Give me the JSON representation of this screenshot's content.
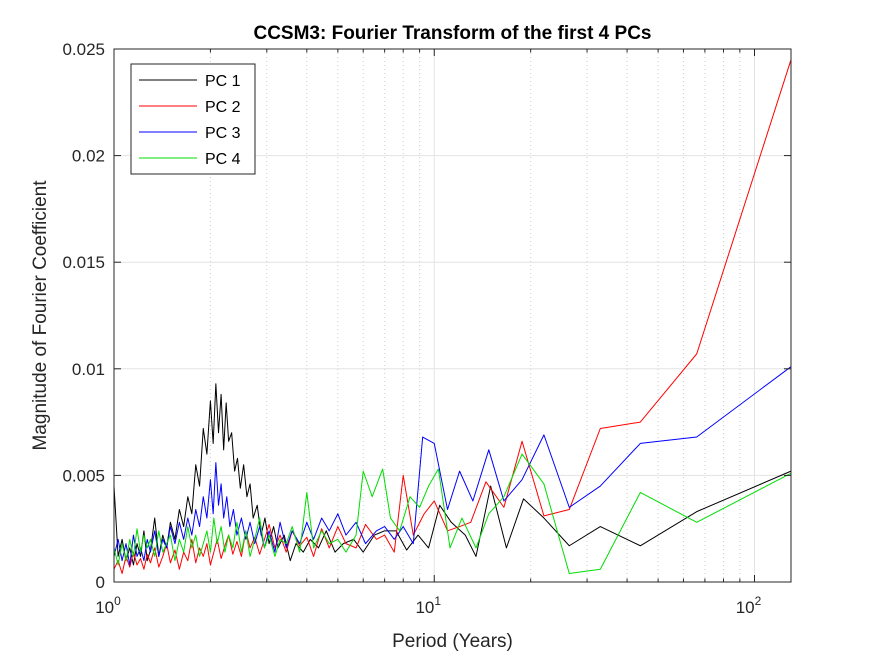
{
  "chart_data": {
    "type": "line",
    "title": "CCSM3: Fourier Transform of the first 4 PCs",
    "xlabel": "Period (Years)",
    "ylabel": "Magnitude of Fourier Coefficient",
    "xscale": "log",
    "xlim": [
      1,
      130
    ],
    "ylim": [
      0,
      0.025
    ],
    "xticks": [
      {
        "value": 1,
        "base": "10",
        "exp": "0"
      },
      {
        "value": 10,
        "base": "10",
        "exp": "1"
      },
      {
        "value": 100,
        "base": "10",
        "exp": "2"
      }
    ],
    "yticks": [
      {
        "value": 0,
        "label": "0"
      },
      {
        "value": 0.005,
        "label": "0.005"
      },
      {
        "value": 0.01,
        "label": "0.01"
      },
      {
        "value": 0.015,
        "label": "0.015"
      },
      {
        "value": 0.02,
        "label": "0.02"
      },
      {
        "value": 0.025,
        "label": "0.025"
      }
    ],
    "grid": true,
    "legend_position": "top-left",
    "series": [
      {
        "name": "PC 1",
        "color": "#000000",
        "points": [
          [
            1.0,
            0.0045
          ],
          [
            1.03,
            0.0012
          ],
          [
            1.06,
            0.002
          ],
          [
            1.09,
            0.001
          ],
          [
            1.12,
            0.0016
          ],
          [
            1.15,
            0.0008
          ],
          [
            1.18,
            0.0018
          ],
          [
            1.21,
            0.0012
          ],
          [
            1.24,
            0.0024
          ],
          [
            1.27,
            0.001
          ],
          [
            1.3,
            0.0015
          ],
          [
            1.34,
            0.003
          ],
          [
            1.38,
            0.0012
          ],
          [
            1.42,
            0.0022
          ],
          [
            1.46,
            0.0016
          ],
          [
            1.5,
            0.0028
          ],
          [
            1.55,
            0.002
          ],
          [
            1.6,
            0.0034
          ],
          [
            1.65,
            0.0026
          ],
          [
            1.7,
            0.004
          ],
          [
            1.75,
            0.0032
          ],
          [
            1.8,
            0.0055
          ],
          [
            1.85,
            0.0045
          ],
          [
            1.9,
            0.0072
          ],
          [
            1.95,
            0.006
          ],
          [
            2.0,
            0.0085
          ],
          [
            2.04,
            0.0065
          ],
          [
            2.08,
            0.0093
          ],
          [
            2.12,
            0.007
          ],
          [
            2.16,
            0.0088
          ],
          [
            2.2,
            0.0062
          ],
          [
            2.24,
            0.0084
          ],
          [
            2.28,
            0.0066
          ],
          [
            2.33,
            0.007
          ],
          [
            2.38,
            0.0052
          ],
          [
            2.43,
            0.0058
          ],
          [
            2.48,
            0.0044
          ],
          [
            2.54,
            0.0055
          ],
          [
            2.6,
            0.004
          ],
          [
            2.66,
            0.0046
          ],
          [
            2.72,
            0.003
          ],
          [
            2.8,
            0.0036
          ],
          [
            2.88,
            0.0022
          ],
          [
            2.96,
            0.003
          ],
          [
            3.05,
            0.0018
          ],
          [
            3.15,
            0.0026
          ],
          [
            3.25,
            0.0016
          ],
          [
            3.4,
            0.0022
          ],
          [
            3.55,
            0.001
          ],
          [
            3.7,
            0.0018
          ],
          [
            3.9,
            0.0014
          ],
          [
            4.1,
            0.002
          ],
          [
            4.35,
            0.0016
          ],
          [
            4.6,
            0.0024
          ],
          [
            4.9,
            0.0014
          ],
          [
            5.2,
            0.0018
          ],
          [
            5.6,
            0.002
          ],
          [
            6.0,
            0.0014
          ],
          [
            6.5,
            0.0022
          ],
          [
            7.0,
            0.0024
          ],
          [
            7.6,
            0.0024
          ],
          [
            8.2,
            0.0015
          ],
          [
            8.9,
            0.0022
          ],
          [
            9.6,
            0.0016
          ],
          [
            10.4,
            0.0036
          ],
          [
            11.3,
            0.0028
          ],
          [
            12.5,
            0.0022
          ],
          [
            13.5,
            0.0012
          ],
          [
            15.0,
            0.0045
          ],
          [
            16.8,
            0.0016
          ],
          [
            19.0,
            0.0039
          ],
          [
            22.0,
            0.003
          ],
          [
            26.4,
            0.0017
          ],
          [
            33.0,
            0.0026
          ],
          [
            44.0,
            0.0017
          ],
          [
            66.0,
            0.0033
          ],
          [
            130,
            0.0052
          ]
        ]
      },
      {
        "name": "PC 2",
        "color": "#ff0000",
        "points": [
          [
            1.0,
            0.0006
          ],
          [
            1.03,
            0.001
          ],
          [
            1.06,
            0.0004
          ],
          [
            1.09,
            0.0012
          ],
          [
            1.12,
            0.0007
          ],
          [
            1.15,
            0.0014
          ],
          [
            1.18,
            0.0008
          ],
          [
            1.21,
            0.0011
          ],
          [
            1.24,
            0.0006
          ],
          [
            1.27,
            0.0013
          ],
          [
            1.3,
            0.0009
          ],
          [
            1.34,
            0.0016
          ],
          [
            1.38,
            0.0007
          ],
          [
            1.42,
            0.0012
          ],
          [
            1.46,
            0.0018
          ],
          [
            1.5,
            0.0009
          ],
          [
            1.55,
            0.0015
          ],
          [
            1.6,
            0.0006
          ],
          [
            1.65,
            0.0014
          ],
          [
            1.7,
            0.001
          ],
          [
            1.75,
            0.002
          ],
          [
            1.8,
            0.0009
          ],
          [
            1.85,
            0.0016
          ],
          [
            1.9,
            0.0012
          ],
          [
            1.95,
            0.0018
          ],
          [
            2.0,
            0.0008
          ],
          [
            2.05,
            0.0014
          ],
          [
            2.1,
            0.002
          ],
          [
            2.16,
            0.0011
          ],
          [
            2.22,
            0.0017
          ],
          [
            2.28,
            0.0022
          ],
          [
            2.35,
            0.0013
          ],
          [
            2.42,
            0.0019
          ],
          [
            2.5,
            0.0012
          ],
          [
            2.58,
            0.0024
          ],
          [
            2.66,
            0.0016
          ],
          [
            2.75,
            0.0021
          ],
          [
            2.85,
            0.0013
          ],
          [
            2.95,
            0.002
          ],
          [
            3.05,
            0.0027
          ],
          [
            3.18,
            0.0016
          ],
          [
            3.3,
            0.0022
          ],
          [
            3.45,
            0.0014
          ],
          [
            3.6,
            0.0024
          ],
          [
            3.8,
            0.0017
          ],
          [
            4.0,
            0.0021
          ],
          [
            4.2,
            0.0012
          ],
          [
            4.45,
            0.0025
          ],
          [
            4.7,
            0.0016
          ],
          [
            5.0,
            0.0026
          ],
          [
            5.3,
            0.0018
          ],
          [
            5.7,
            0.0016
          ],
          [
            6.1,
            0.0027
          ],
          [
            6.6,
            0.002
          ],
          [
            7.0,
            0.0022
          ],
          [
            7.5,
            0.0014
          ],
          [
            8.0,
            0.005
          ],
          [
            8.6,
            0.0022
          ],
          [
            9.3,
            0.0032
          ],
          [
            10.0,
            0.0038
          ],
          [
            11.0,
            0.0024
          ],
          [
            12.0,
            0.0026
          ],
          [
            13.0,
            0.0028
          ],
          [
            14.5,
            0.0047
          ],
          [
            16.5,
            0.0035
          ],
          [
            18.8,
            0.0066
          ],
          [
            22.0,
            0.0031
          ],
          [
            26.4,
            0.0034
          ],
          [
            33.0,
            0.0072
          ],
          [
            44.0,
            0.0075
          ],
          [
            66.0,
            0.0107
          ],
          [
            130,
            0.0245
          ]
        ]
      },
      {
        "name": "PC 3",
        "color": "#0000ff",
        "points": [
          [
            1.0,
            0.0012
          ],
          [
            1.03,
            0.002
          ],
          [
            1.06,
            0.001
          ],
          [
            1.09,
            0.0018
          ],
          [
            1.12,
            0.0008
          ],
          [
            1.15,
            0.0022
          ],
          [
            1.18,
            0.0012
          ],
          [
            1.21,
            0.0016
          ],
          [
            1.24,
            0.001
          ],
          [
            1.27,
            0.002
          ],
          [
            1.3,
            0.0014
          ],
          [
            1.34,
            0.0024
          ],
          [
            1.38,
            0.0012
          ],
          [
            1.42,
            0.002
          ],
          [
            1.46,
            0.0016
          ],
          [
            1.5,
            0.0026
          ],
          [
            1.55,
            0.0018
          ],
          [
            1.6,
            0.0028
          ],
          [
            1.65,
            0.002
          ],
          [
            1.7,
            0.003
          ],
          [
            1.75,
            0.0022
          ],
          [
            1.8,
            0.0034
          ],
          [
            1.85,
            0.0026
          ],
          [
            1.9,
            0.004
          ],
          [
            1.95,
            0.003
          ],
          [
            2.0,
            0.0048
          ],
          [
            2.04,
            0.0032
          ],
          [
            2.08,
            0.0056
          ],
          [
            2.12,
            0.0036
          ],
          [
            2.16,
            0.0046
          ],
          [
            2.2,
            0.003
          ],
          [
            2.25,
            0.004
          ],
          [
            2.3,
            0.0026
          ],
          [
            2.36,
            0.0034
          ],
          [
            2.42,
            0.0022
          ],
          [
            2.5,
            0.003
          ],
          [
            2.58,
            0.002
          ],
          [
            2.66,
            0.0028
          ],
          [
            2.75,
            0.0018
          ],
          [
            2.85,
            0.0026
          ],
          [
            2.95,
            0.0016
          ],
          [
            3.05,
            0.0024
          ],
          [
            3.18,
            0.0014
          ],
          [
            3.3,
            0.0028
          ],
          [
            3.45,
            0.0016
          ],
          [
            3.6,
            0.0024
          ],
          [
            3.8,
            0.0018
          ],
          [
            4.0,
            0.0028
          ],
          [
            4.2,
            0.002
          ],
          [
            4.45,
            0.003
          ],
          [
            4.7,
            0.0024
          ],
          [
            5.0,
            0.0032
          ],
          [
            5.3,
            0.0022
          ],
          [
            5.7,
            0.0028
          ],
          [
            6.1,
            0.0018
          ],
          [
            6.6,
            0.0024
          ],
          [
            7.0,
            0.0026
          ],
          [
            7.5,
            0.002
          ],
          [
            8.0,
            0.0026
          ],
          [
            8.6,
            0.0018
          ],
          [
            9.2,
            0.0068
          ],
          [
            10.0,
            0.0065
          ],
          [
            11.0,
            0.0034
          ],
          [
            12.0,
            0.0052
          ],
          [
            13.2,
            0.0038
          ],
          [
            14.8,
            0.0062
          ],
          [
            16.5,
            0.0038
          ],
          [
            18.8,
            0.0048
          ],
          [
            22.0,
            0.0069
          ],
          [
            26.4,
            0.0035
          ],
          [
            33.0,
            0.0045
          ],
          [
            44.0,
            0.0065
          ],
          [
            66.0,
            0.0068
          ],
          [
            130,
            0.0101
          ]
        ]
      },
      {
        "name": "PC 4",
        "color": "#00dd00",
        "points": [
          [
            1.0,
            0.0016
          ],
          [
            1.03,
            0.0008
          ],
          [
            1.06,
            0.0018
          ],
          [
            1.09,
            0.001
          ],
          [
            1.12,
            0.002
          ],
          [
            1.15,
            0.0012
          ],
          [
            1.18,
            0.0025
          ],
          [
            1.21,
            0.0014
          ],
          [
            1.24,
            0.0022
          ],
          [
            1.27,
            0.0016
          ],
          [
            1.3,
            0.002
          ],
          [
            1.34,
            0.0012
          ],
          [
            1.38,
            0.0024
          ],
          [
            1.42,
            0.0014
          ],
          [
            1.46,
            0.0018
          ],
          [
            1.5,
            0.0022
          ],
          [
            1.55,
            0.001
          ],
          [
            1.6,
            0.002
          ],
          [
            1.65,
            0.0014
          ],
          [
            1.7,
            0.0026
          ],
          [
            1.75,
            0.0016
          ],
          [
            1.8,
            0.0022
          ],
          [
            1.85,
            0.0012
          ],
          [
            1.9,
            0.0018
          ],
          [
            1.95,
            0.0024
          ],
          [
            2.0,
            0.0014
          ],
          [
            2.05,
            0.003
          ],
          [
            2.1,
            0.0018
          ],
          [
            2.16,
            0.0026
          ],
          [
            2.22,
            0.0014
          ],
          [
            2.28,
            0.0022
          ],
          [
            2.35,
            0.0016
          ],
          [
            2.42,
            0.0028
          ],
          [
            2.5,
            0.0014
          ],
          [
            2.58,
            0.0024
          ],
          [
            2.66,
            0.0012
          ],
          [
            2.75,
            0.002
          ],
          [
            2.85,
            0.003
          ],
          [
            2.95,
            0.0016
          ],
          [
            3.05,
            0.0022
          ],
          [
            3.18,
            0.0012
          ],
          [
            3.3,
            0.002
          ],
          [
            3.45,
            0.0018
          ],
          [
            3.6,
            0.0026
          ],
          [
            3.8,
            0.0014
          ],
          [
            4.0,
            0.0042
          ],
          [
            4.2,
            0.0016
          ],
          [
            4.45,
            0.0024
          ],
          [
            4.7,
            0.0018
          ],
          [
            5.0,
            0.002
          ],
          [
            5.3,
            0.0014
          ],
          [
            5.7,
            0.0022
          ],
          [
            6.0,
            0.0052
          ],
          [
            6.4,
            0.004
          ],
          [
            6.9,
            0.0053
          ],
          [
            7.3,
            0.003
          ],
          [
            7.8,
            0.0024
          ],
          [
            8.4,
            0.004
          ],
          [
            9.0,
            0.0035
          ],
          [
            9.6,
            0.0045
          ],
          [
            10.3,
            0.0053
          ],
          [
            11.2,
            0.0016
          ],
          [
            12.2,
            0.003
          ],
          [
            13.5,
            0.0016
          ],
          [
            14.8,
            0.0032
          ],
          [
            16.5,
            0.004
          ],
          [
            18.8,
            0.006
          ],
          [
            22.0,
            0.0046
          ],
          [
            26.4,
            0.0004
          ],
          [
            33.0,
            0.0006
          ],
          [
            44.0,
            0.0042
          ],
          [
            66.0,
            0.0028
          ],
          [
            130,
            0.0051
          ]
        ]
      }
    ]
  }
}
